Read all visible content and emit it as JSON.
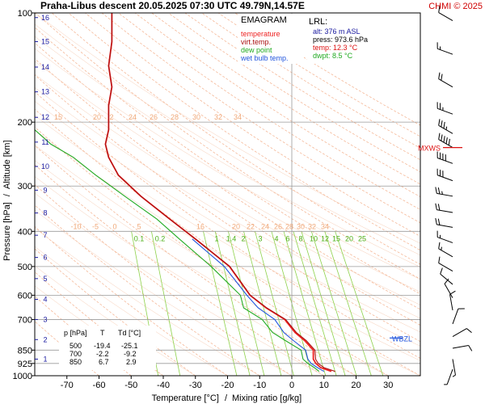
{
  "header": {
    "title": "Praha-Libus   descent   20.05.2025 07:30 UTC  49.79N,14.57E",
    "copyright": "CHMI © 2025"
  },
  "legend": {
    "heading": "EMAGRAM",
    "items": [
      {
        "label": "temperature",
        "color": "#ee2222"
      },
      {
        "label": "virt.temp.",
        "color": "#aa1111"
      },
      {
        "label": "dew point",
        "color": "#22aa22"
      },
      {
        "label": "wet bulb temp.",
        "color": "#2255dd"
      }
    ]
  },
  "lrl": {
    "heading": "LRL:",
    "lines": [
      {
        "text": "alt: 376 m ASL",
        "color": "#1a1aa0"
      },
      {
        "text": "press: 973.6 hPa",
        "color": "#000000"
      },
      {
        "text": "temp: 12.3 °C",
        "color": "#dd1111"
      },
      {
        "text": "dwpt: 8.5 °C",
        "color": "#22aa22"
      }
    ]
  },
  "table": {
    "headers": [
      "p [hPa]",
      "T",
      "Td [°C]"
    ],
    "rows": [
      [
        "500",
        "-19.4",
        "-25.1"
      ],
      [
        "700",
        "-2.2",
        "-9.2"
      ],
      [
        "850",
        "6.7",
        "2.9"
      ]
    ]
  },
  "wind_labels": [
    {
      "text": "MXWS",
      "pressure": 235,
      "color": "#dd1111"
    },
    {
      "text": "WBZL",
      "pressure": 787,
      "color": "#2255dd"
    }
  ],
  "chart_data": {
    "type": "line",
    "title": "Praha-Libus   descent   20.05.2025 07:30 UTC  49.79N,14.57E",
    "xlabel": "Temperature [°C]",
    "xlabel2": "Mixing ratio [g/kg]",
    "xlabel_sep": "/",
    "ylabel": "Pressure [hPa]",
    "ylabel2": "Altitude [km]",
    "ylabel_sep": "/",
    "xlim": [
      -80,
      40
    ],
    "ylim": [
      1000,
      100
    ],
    "yscale": "log",
    "x_ticks": [
      -70,
      -60,
      -50,
      -40,
      -30,
      -20,
      -10,
      0,
      10,
      20,
      30
    ],
    "y_ticks": [
      100,
      200,
      300,
      400,
      500,
      600,
      700,
      850,
      925,
      1000
    ],
    "y_gridlines": [
      200,
      300,
      400,
      500,
      600,
      700,
      850,
      925
    ],
    "altitude_ticks_km": [
      1,
      2,
      3,
      4,
      5,
      6,
      7,
      8,
      9,
      10,
      11,
      12,
      13,
      14,
      15,
      16
    ],
    "altitude_pressures": [
      900,
      795,
      700,
      616,
      540,
      472,
      410,
      356,
      308,
      265,
      227,
      194,
      165,
      141,
      120,
      103
    ],
    "theta_label_values_top": [
      "15",
      "20",
      "2",
      "24",
      "26",
      "28",
      "30",
      "32",
      "34"
    ],
    "theta_label_values_mid": [
      "-10",
      "-5",
      "0",
      "5",
      "16",
      "20",
      "22",
      "24",
      "26",
      "28",
      "30",
      "32",
      "34"
    ],
    "mixing_ratio_labels": [
      "0.1",
      "0.2",
      "1",
      "1.4",
      "2",
      "3",
      "4",
      "6",
      "8",
      "10",
      "12",
      "15",
      "20",
      "25"
    ],
    "mixing_ratio_values": [
      0.1,
      0.2,
      1,
      1.4,
      2,
      3,
      4,
      6,
      8,
      10,
      12,
      15,
      20,
      25
    ],
    "grid": true,
    "series": [
      {
        "name": "temperature",
        "color": "#ee2222",
        "points": [
          [
            12.3,
            973
          ],
          [
            9,
            950
          ],
          [
            7.5,
            925
          ],
          [
            6.7,
            900
          ],
          [
            6.7,
            850
          ],
          [
            4,
            800
          ],
          [
            1,
            760
          ],
          [
            -2.2,
            700
          ],
          [
            -8,
            650
          ],
          [
            -13,
            600
          ],
          [
            -19.4,
            500
          ],
          [
            -30,
            420
          ],
          [
            -38,
            370
          ],
          [
            -47,
            320
          ],
          [
            -54,
            280
          ],
          [
            -57,
            250
          ],
          [
            -58,
            230
          ],
          [
            -57,
            210
          ],
          [
            -57,
            200
          ],
          [
            -57,
            180
          ],
          [
            -56,
            160
          ],
          [
            -57,
            140
          ],
          [
            -56,
            120
          ],
          [
            -56,
            100
          ]
        ]
      },
      {
        "name": "virt.temp.",
        "color": "#aa1111",
        "points": [
          [
            13.5,
            973
          ],
          [
            10,
            950
          ],
          [
            8.2,
            925
          ],
          [
            7.4,
            900
          ],
          [
            7.2,
            850
          ],
          [
            4.5,
            800
          ],
          [
            1.4,
            760
          ],
          [
            -1.9,
            700
          ],
          [
            -7.8,
            650
          ],
          [
            -12.9,
            600
          ],
          [
            -19.3,
            500
          ],
          [
            -30,
            420
          ],
          [
            -38,
            370
          ],
          [
            -47,
            320
          ],
          [
            -54,
            280
          ],
          [
            -57,
            250
          ],
          [
            -58,
            230
          ],
          [
            -57,
            210
          ],
          [
            -57,
            200
          ],
          [
            -57,
            180
          ],
          [
            -56,
            160
          ],
          [
            -57,
            140
          ],
          [
            -56,
            120
          ],
          [
            -56,
            100
          ]
        ]
      },
      {
        "name": "dew point",
        "color": "#22aa22",
        "points": [
          [
            8.5,
            973
          ],
          [
            7,
            950
          ],
          [
            5,
            925
          ],
          [
            3.5,
            900
          ],
          [
            2.9,
            850
          ],
          [
            -2,
            800
          ],
          [
            -6,
            760
          ],
          [
            -9.2,
            700
          ],
          [
            -15,
            650
          ],
          [
            -16,
            600
          ],
          [
            -25.1,
            500
          ],
          [
            -35,
            420
          ],
          [
            -42,
            370
          ],
          [
            -52,
            320
          ],
          [
            -61,
            280
          ],
          [
            -68,
            250
          ],
          [
            -75,
            230
          ],
          [
            -80,
            210
          ]
        ]
      },
      {
        "name": "wet bulb temp.",
        "color": "#2255dd",
        "points": [
          [
            10,
            973
          ],
          [
            8,
            950
          ],
          [
            6,
            925
          ],
          [
            5,
            900
          ],
          [
            4.3,
            850
          ],
          [
            0.5,
            800
          ],
          [
            -2.5,
            760
          ],
          [
            -5.3,
            700
          ],
          [
            -10.5,
            650
          ],
          [
            -14,
            600
          ],
          [
            -21,
            500
          ],
          [
            -31,
            420
          ]
        ]
      }
    ],
    "wind_barbs": [
      {
        "pressure": 105,
        "dir": 300,
        "speed": 10
      },
      {
        "pressure": 130,
        "dir": 290,
        "speed": 15
      },
      {
        "pressure": 160,
        "dir": 300,
        "speed": 20
      },
      {
        "pressure": 190,
        "dir": 290,
        "speed": 25
      },
      {
        "pressure": 215,
        "dir": 300,
        "speed": 35
      },
      {
        "pressure": 235,
        "dir": 300,
        "speed": 50
      },
      {
        "pressure": 260,
        "dir": 290,
        "speed": 40
      },
      {
        "pressure": 290,
        "dir": 290,
        "speed": 30
      },
      {
        "pressure": 320,
        "dir": 280,
        "speed": 25
      },
      {
        "pressure": 355,
        "dir": 280,
        "speed": 20
      },
      {
        "pressure": 390,
        "dir": 280,
        "speed": 20
      },
      {
        "pressure": 430,
        "dir": 290,
        "speed": 15
      },
      {
        "pressure": 470,
        "dir": 300,
        "speed": 15
      },
      {
        "pressure": 515,
        "dir": 300,
        "speed": 10
      },
      {
        "pressure": 560,
        "dir": 310,
        "speed": 10
      },
      {
        "pressure": 610,
        "dir": 330,
        "speed": 10
      },
      {
        "pressure": 660,
        "dir": 350,
        "speed": 10
      },
      {
        "pressure": 720,
        "dir": 20,
        "speed": 10
      },
      {
        "pressure": 780,
        "dir": 60,
        "speed": 10
      },
      {
        "pressure": 840,
        "dir": 80,
        "speed": 10
      },
      {
        "pressure": 900,
        "dir": 170,
        "speed": 5
      },
      {
        "pressure": 960,
        "dir": 200,
        "speed": 5
      }
    ]
  }
}
